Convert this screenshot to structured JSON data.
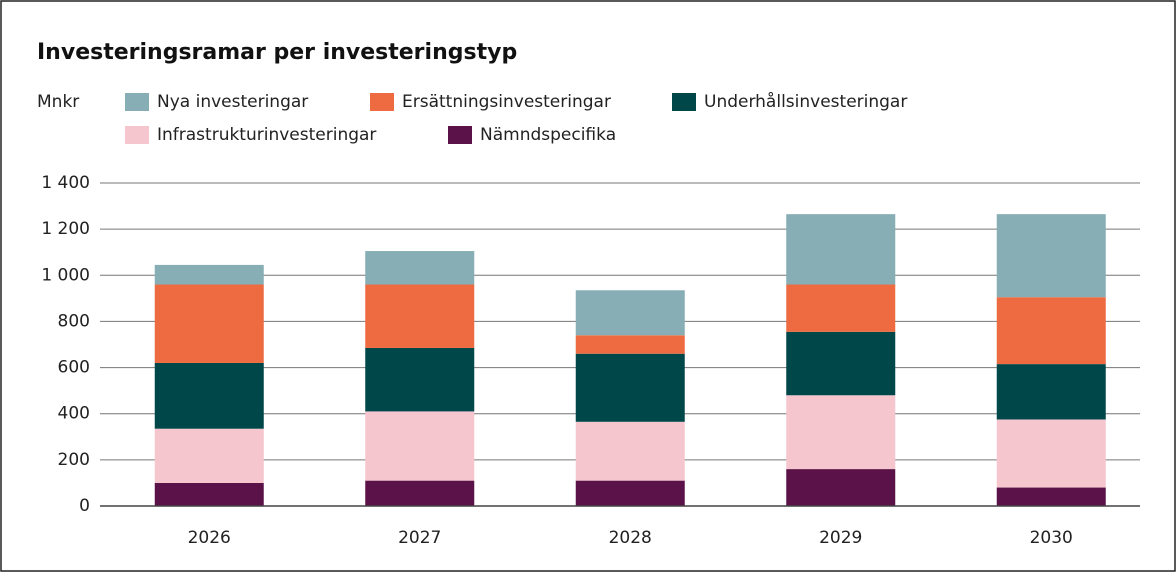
{
  "chart_data": {
    "type": "stacked_bar",
    "title": "Investeringsramar per investeringstyp",
    "ylabel": "Mnkr",
    "categories": [
      "2026",
      "2027",
      "2028",
      "2029",
      "2030"
    ],
    "series": [
      {
        "name": "Nya investeringar",
        "color": "#86aeb4",
        "values": [
          85,
          145,
          195,
          305,
          360
        ]
      },
      {
        "name": "Ersättningsinvesteringar",
        "color": "#ee6a40",
        "values": [
          340,
          275,
          80,
          205,
          290
        ]
      },
      {
        "name": "Underhållsinvesteringar",
        "color": "#00474a",
        "values": [
          285,
          275,
          295,
          275,
          240
        ]
      },
      {
        "name": "Infrastrukturinvesteringar",
        "color": "#f6c6ce",
        "values": [
          235,
          300,
          255,
          320,
          295
        ]
      },
      {
        "name": "Nämndspecifika",
        "color": "#5a1249",
        "values": [
          100,
          110,
          110,
          160,
          80
        ]
      }
    ],
    "ylim": [
      0,
      1400
    ],
    "yticks": [
      0,
      200,
      400,
      600,
      800,
      {
        "value": 1000,
        "label": "1 000"
      },
      {
        "value": 1200,
        "label": "1 200"
      },
      {
        "value": 1400,
        "label": "1 400"
      }
    ],
    "grid": true
  }
}
